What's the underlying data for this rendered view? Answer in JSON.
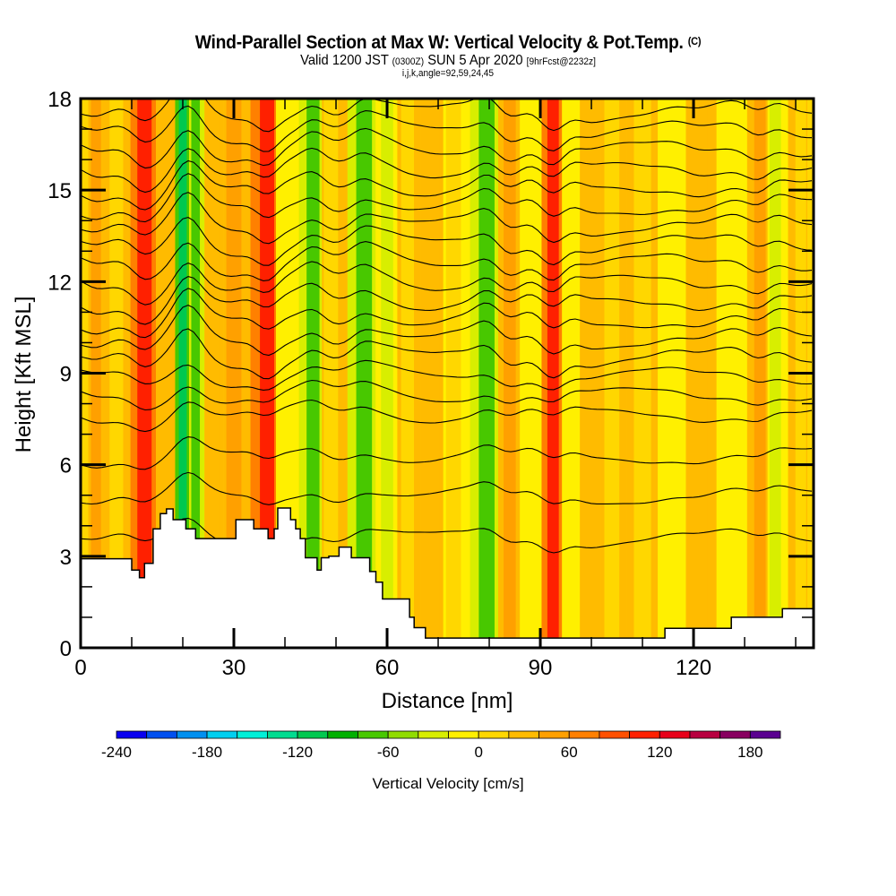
{
  "header": {
    "title": "Wind-Parallel Section at Max W: Vertical Velocity & Pot.Temp.",
    "copyright": "(C)",
    "valid_prefix": "Valid 1200 JST",
    "valid_utc": "(0300Z)",
    "valid_date": "SUN 5 Apr 2020",
    "forecast": "[9hrFcst@2232z]",
    "params": "i,j,k,angle=92,59,24,45"
  },
  "chart_data": {
    "type": "heatmap",
    "title": "Wind-Parallel Section at Max W: Vertical Velocity & Pot.Temp.",
    "xlabel": "Distance [nm]",
    "ylabel": "Height [Kft MSL]",
    "xlim": [
      0,
      143.5
    ],
    "ylim": [
      0,
      18
    ],
    "x_ticks": [
      0,
      30,
      60,
      90,
      120
    ],
    "x_minor_step": 10,
    "y_ticks": [
      0,
      3,
      6,
      9,
      12,
      15,
      18
    ],
    "y_minor_step": 1,
    "colorbar": {
      "label": "Vertical Velocity [cm/s]",
      "min": -240,
      "max": 200,
      "step": 20,
      "tick_labels": [
        "-240",
        "-180",
        "-120",
        "-60",
        "0",
        "60",
        "120",
        "180"
      ],
      "tick_values": [
        -240,
        -180,
        -120,
        -60,
        0,
        60,
        120,
        180
      ],
      "colors": [
        "#0a00f0",
        "#0050f0",
        "#0090f0",
        "#00cff0",
        "#00f0d8",
        "#00dc90",
        "#00c850",
        "#00b000",
        "#48c800",
        "#90dc00",
        "#d8ee00",
        "#fff000",
        "#ffd700",
        "#ffbb00",
        "#ffa000",
        "#ff8000",
        "#ff5000",
        "#ff2000",
        "#e8001a",
        "#b80040",
        "#880060",
        "#5a0090"
      ]
    },
    "terrain_profile_kft": {
      "x": [
        0,
        10,
        10,
        11.5,
        11.5,
        12.5,
        12.5,
        14.2,
        14.2,
        15.6,
        15.6,
        16.8,
        16.8,
        18.1,
        18.1,
        20.6,
        20.6,
        22.5,
        22.5,
        25,
        25,
        30.4,
        30.4,
        33.9,
        33.9,
        36.7,
        36.7,
        37.9,
        37.9,
        38.6,
        38.6,
        41.1,
        41.1,
        42.1,
        42.1,
        43.0,
        43.0,
        44.0,
        44.0,
        46.3,
        46.3,
        47.1,
        47.1,
        48.6,
        48.6,
        50.6,
        50.6,
        53.0,
        53.0,
        54.4,
        54.4,
        56.6,
        56.6,
        57.8,
        57.8,
        59.1,
        59.1,
        59.7,
        59.7,
        64.4,
        64.4,
        65.3,
        65.3,
        67.5,
        67.5,
        114.4,
        114.4,
        127.4,
        127.4,
        137.4,
        137.4,
        143.5
      ],
      "y": [
        2.92,
        2.92,
        2.55,
        2.55,
        2.3,
        2.3,
        2.77,
        2.77,
        3.9,
        3.9,
        4.4,
        4.4,
        4.55,
        4.55,
        4.2,
        4.2,
        3.9,
        3.9,
        3.58,
        3.58,
        3.58,
        3.58,
        4.2,
        4.2,
        3.9,
        3.9,
        3.58,
        3.58,
        3.9,
        3.9,
        4.58,
        4.58,
        4.2,
        4.2,
        3.9,
        3.9,
        3.58,
        3.58,
        2.95,
        2.95,
        2.55,
        2.55,
        2.95,
        2.95,
        3.0,
        3.0,
        3.3,
        3.3,
        2.95,
        2.95,
        2.95,
        2.95,
        2.5,
        2.5,
        2.15,
        2.15,
        1.6,
        1.6,
        1.6,
        1.6,
        1.0,
        1.0,
        0.66,
        0.66,
        0.32,
        0.32,
        0.64,
        0.64,
        1.0,
        1.0,
        1.28,
        1.28
      ]
    },
    "velocity_bands": [
      {
        "x_nm": 3,
        "w_cms": 50
      },
      {
        "x_nm": 7,
        "w_cms": 10
      },
      {
        "x_nm": 12.5,
        "w_cms": 110
      },
      {
        "x_nm": 17,
        "w_cms": 30
      },
      {
        "x_nm": 20,
        "w_cms": -120
      },
      {
        "x_nm": 22.5,
        "w_cms": -80
      },
      {
        "x_nm": 26,
        "w_cms": 20
      },
      {
        "x_nm": 30,
        "w_cms": 40
      },
      {
        "x_nm": 36.5,
        "w_cms": 100
      },
      {
        "x_nm": 40,
        "w_cms": -10
      },
      {
        "x_nm": 45.5,
        "w_cms": -80
      },
      {
        "x_nm": 49,
        "w_cms": 10
      },
      {
        "x_nm": 55.5,
        "w_cms": -80
      },
      {
        "x_nm": 60,
        "w_cms": -30
      },
      {
        "x_nm": 64,
        "w_cms": 10
      },
      {
        "x_nm": 69,
        "w_cms": 20
      },
      {
        "x_nm": 73,
        "w_cms": 0
      },
      {
        "x_nm": 79.5,
        "w_cms": -70
      },
      {
        "x_nm": 84,
        "w_cms": 50
      },
      {
        "x_nm": 88,
        "w_cms": -20
      },
      {
        "x_nm": 92.5,
        "w_cms": 100
      },
      {
        "x_nm": 96,
        "w_cms": -20
      },
      {
        "x_nm": 99.5,
        "w_cms": 30
      },
      {
        "x_nm": 104,
        "w_cms": 10
      },
      {
        "x_nm": 110,
        "w_cms": 10
      },
      {
        "x_nm": 116,
        "w_cms": -10
      },
      {
        "x_nm": 121,
        "w_cms": 20
      },
      {
        "x_nm": 128,
        "w_cms": -20
      },
      {
        "x_nm": 133,
        "w_cms": 50
      },
      {
        "x_nm": 136,
        "w_cms": -40
      },
      {
        "x_nm": 141,
        "w_cms": 10
      }
    ],
    "contour_field": "Potential Temperature (isentropes, black lines with small labels)"
  }
}
